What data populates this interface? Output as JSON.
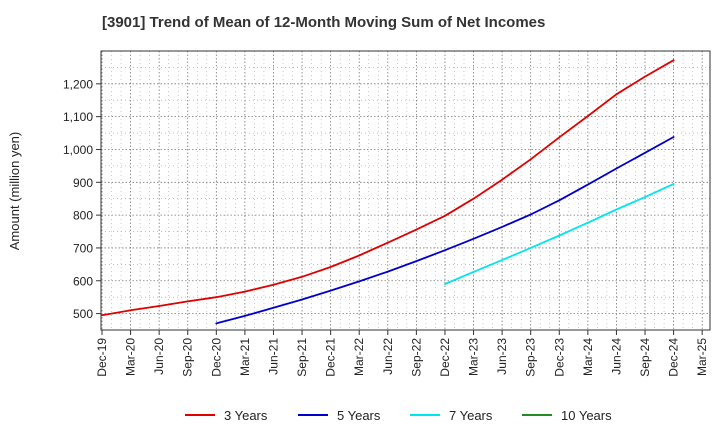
{
  "chart_data": {
    "type": "line",
    "title": "[3901]  Trend of Mean of 12-Month Moving Sum of Net Incomes",
    "xlabel": "",
    "ylabel": "Amount (million yen)",
    "ylim": [
      450,
      1300
    ],
    "yticks": [
      500,
      600,
      700,
      800,
      900,
      1000,
      1100,
      1200
    ],
    "ytick_labels": [
      "500",
      "600",
      "700",
      "800",
      "900",
      "1,000",
      "1,100",
      "1,200"
    ],
    "xticks": [
      "Dec-19",
      "Mar-20",
      "Jun-20",
      "Sep-20",
      "Dec-20",
      "Mar-21",
      "Jun-21",
      "Sep-21",
      "Dec-21",
      "Mar-22",
      "Jun-22",
      "Sep-22",
      "Dec-22",
      "Mar-23",
      "Jun-23",
      "Sep-23",
      "Dec-23",
      "Mar-24",
      "Jun-24",
      "Sep-24",
      "Dec-24",
      "Mar-25"
    ],
    "grid": true,
    "legend_position": "bottom",
    "series": [
      {
        "name": "3 Years",
        "color": "#e00000",
        "x": [
          "Dec-19",
          "Mar-20",
          "Jun-20",
          "Sep-20",
          "Dec-20",
          "Mar-21",
          "Jun-21",
          "Sep-21",
          "Dec-21",
          "Mar-22",
          "Jun-22",
          "Sep-22",
          "Dec-22",
          "Mar-23",
          "Jun-23",
          "Sep-23",
          "Dec-23",
          "Mar-24",
          "Jun-24",
          "Sep-24",
          "Dec-24"
        ],
        "values": [
          495,
          510,
          523,
          537,
          550,
          567,
          588,
          612,
          642,
          677,
          716,
          756,
          798,
          850,
          908,
          970,
          1037,
          1102,
          1168,
          1222,
          1272
        ]
      },
      {
        "name": "5 Years",
        "color": "#0000cc",
        "x": [
          "Dec-20",
          "Mar-21",
          "Jun-21",
          "Sep-21",
          "Dec-21",
          "Mar-22",
          "Jun-22",
          "Sep-22",
          "Dec-22",
          "Mar-23",
          "Jun-23",
          "Sep-23",
          "Dec-23",
          "Mar-24",
          "Jun-24",
          "Sep-24",
          "Dec-24"
        ],
        "values": [
          470,
          493,
          518,
          543,
          570,
          598,
          628,
          660,
          693,
          728,
          764,
          802,
          845,
          893,
          942,
          990,
          1038
        ]
      },
      {
        "name": "7 Years",
        "color": "#00e5ee",
        "x": [
          "Dec-22",
          "Mar-23",
          "Jun-23",
          "Sep-23",
          "Dec-23",
          "Mar-24",
          "Jun-24",
          "Sep-24",
          "Dec-24"
        ],
        "values": [
          590,
          627,
          663,
          700,
          738,
          777,
          817,
          855,
          895
        ]
      },
      {
        "name": "10 Years",
        "color": "#228b22",
        "x": [],
        "values": []
      }
    ]
  }
}
